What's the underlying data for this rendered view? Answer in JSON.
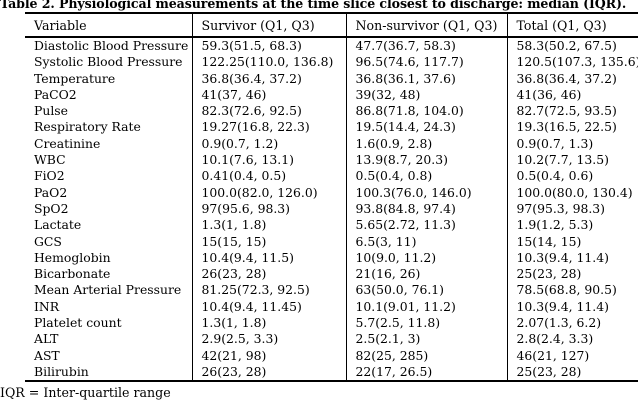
{
  "title": "Table 2. Physiological measurements at the time slice closest to discharge: median (IQR).",
  "footnote": "IQR = Inter-quartile range",
  "chart_data": {
    "type": "table",
    "title": "Table 2. Physiological measurements at the time slice closest to discharge: median (IQR).",
    "note": "IQR = Inter-quartile range"
  },
  "table": {
    "columns": [
      "Variable",
      "Survivor (Q1, Q3)",
      "Non-survivor (Q1, Q3)",
      "Total (Q1, Q3)"
    ],
    "rows": [
      [
        "Diastolic Blood Pressure",
        "59.3(51.5, 68.3)",
        "47.7(36.7, 58.3)",
        "58.3(50.2, 67.5)"
      ],
      [
        "Systolic Blood Pressure",
        "122.25(110.0, 136.8)",
        "96.5(74.6, 117.7)",
        "120.5(107.3, 135.6)"
      ],
      [
        "Temperature",
        "36.8(36.4, 37.2)",
        "36.8(36.1, 37.6)",
        "36.8(36.4, 37.2)"
      ],
      [
        "PaCO2",
        "41(37, 46)",
        "39(32, 48)",
        "41(36, 46)"
      ],
      [
        "Pulse",
        "82.3(72.6, 92.5)",
        "86.8(71.8, 104.0)",
        "82.7(72.5, 93.5)"
      ],
      [
        "Respiratory Rate",
        "19.27(16.8, 22.3)",
        "19.5(14.4, 24.3)",
        "19.3(16.5, 22.5)"
      ],
      [
        "Creatinine",
        "0.9(0.7, 1.2)",
        "1.6(0.9, 2.8)",
        "0.9(0.7, 1.3)"
      ],
      [
        "WBC",
        "10.1(7.6, 13.1)",
        "13.9(8.7, 20.3)",
        "10.2(7.7, 13.5)"
      ],
      [
        "FiO2",
        "0.41(0.4, 0.5)",
        "0.5(0.4, 0.8)",
        "0.5(0.4, 0.6)"
      ],
      [
        "PaO2",
        "100.0(82.0, 126.0)",
        "100.3(76.0, 146.0)",
        "100.0(80.0, 130.4)"
      ],
      [
        "SpO2",
        "97(95.6, 98.3)",
        "93.8(84.8, 97.4)",
        "97(95.3, 98.3)"
      ],
      [
        "Lactate",
        "1.3(1, 1.8)",
        "5.65(2.72, 11.3)",
        "1.9(1.2, 5.3)"
      ],
      [
        "GCS",
        "15(15, 15)",
        "6.5(3, 11)",
        "15(14, 15)"
      ],
      [
        "Hemoglobin",
        "10.4(9.4, 11.5)",
        "10(9.0, 11.2)",
        "10.3(9.4, 11.4)"
      ],
      [
        "Bicarbonate",
        "26(23, 28)",
        "21(16, 26)",
        "25(23, 28)"
      ],
      [
        "Mean Arterial Pressure",
        "81.25(72.3, 92.5)",
        "63(50.0, 76.1)",
        "78.5(68.8, 90.5)"
      ],
      [
        "INR",
        "10.4(9.4, 11.45)",
        "10.1(9.01, 11.2)",
        "10.3(9.4, 11.4)"
      ],
      [
        "Platelet count",
        "1.3(1, 1.8)",
        "5.7(2.5, 11.8)",
        "2.07(1.3, 6.2)"
      ],
      [
        "ALT",
        "2.9(2.5, 3.3)",
        "2.5(2.1, 3)",
        "2.8(2.4, 3.3)"
      ],
      [
        "AST",
        "42(21, 98)",
        "82(25, 285)",
        "46(21, 127)"
      ],
      [
        "Bilirubin",
        "26(23, 28)",
        "22(17, 26.5)",
        "25(23, 28)"
      ]
    ]
  }
}
